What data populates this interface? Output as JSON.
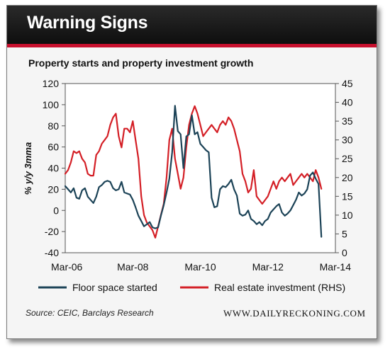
{
  "header": {
    "title": "Warning Signs",
    "subtitle": "Property starts and property investment growth"
  },
  "footer": {
    "source": "Source: CEIC, Barclays Research",
    "website": "WWW.DAILYRECKONING.COM"
  },
  "colors": {
    "floor_space": "#1c4357",
    "real_estate": "#d41f26",
    "header_band": "#1a1a1a",
    "accent": "#c8102e"
  },
  "chart_data": {
    "type": "line",
    "title": "Property starts and property investment growth",
    "ylabel_left": "% y/y 3mma",
    "ylim_left": [
      -40,
      120
    ],
    "ylim_right": [
      0,
      45
    ],
    "yticks_left": [
      "120",
      "100",
      "80",
      "60",
      "40",
      "20",
      "0",
      "-20",
      "-40"
    ],
    "yticks_right": [
      "45",
      "40",
      "35",
      "30",
      "25",
      "20",
      "15",
      "10",
      "5",
      "0"
    ],
    "x_tick_labels": [
      "Mar-06",
      "Mar-08",
      "Mar-10",
      "Mar-12",
      "Mar-14"
    ],
    "x_tick_positions": [
      0,
      24,
      48,
      72,
      96
    ],
    "grid": false,
    "legend_position": "bottom",
    "series": [
      {
        "name": "Floor space started",
        "axis": "left",
        "points": [
          [
            0,
            23
          ],
          [
            1,
            20
          ],
          [
            2,
            17
          ],
          [
            3,
            21
          ],
          [
            4,
            12
          ],
          [
            5,
            11
          ],
          [
            6,
            19
          ],
          [
            7,
            21
          ],
          [
            8,
            13
          ],
          [
            9,
            10
          ],
          [
            10,
            7
          ],
          [
            11,
            13
          ],
          [
            12,
            22
          ],
          [
            13,
            24
          ],
          [
            14,
            27
          ],
          [
            15,
            28
          ],
          [
            16,
            27
          ],
          [
            17,
            21
          ],
          [
            18,
            19
          ],
          [
            19,
            20
          ],
          [
            20,
            27
          ],
          [
            21,
            17
          ],
          [
            22,
            16
          ],
          [
            23,
            15
          ],
          [
            24,
            10
          ],
          [
            25,
            3
          ],
          [
            26,
            -5
          ],
          [
            27,
            -10
          ],
          [
            28,
            -15
          ],
          [
            29,
            -13
          ],
          [
            30,
            -11
          ],
          [
            31,
            -16
          ],
          [
            32,
            -17
          ],
          [
            33,
            -16
          ],
          [
            34,
            -5
          ],
          [
            35,
            5
          ],
          [
            36,
            17
          ],
          [
            37,
            30
          ],
          [
            38,
            55
          ],
          [
            39,
            99
          ],
          [
            40,
            75
          ],
          [
            41,
            72
          ],
          [
            42,
            40
          ],
          [
            43,
            70
          ],
          [
            44,
            72
          ],
          [
            45,
            90
          ],
          [
            46,
            72
          ],
          [
            47,
            74
          ],
          [
            48,
            63
          ],
          [
            49,
            60
          ],
          [
            50,
            57
          ],
          [
            51,
            55
          ],
          [
            52,
            12
          ],
          [
            53,
            3
          ],
          [
            54,
            4
          ],
          [
            55,
            20
          ],
          [
            56,
            23
          ],
          [
            57,
            22
          ],
          [
            58,
            25
          ],
          [
            59,
            29
          ],
          [
            60,
            20
          ],
          [
            61,
            14
          ],
          [
            62,
            -3
          ],
          [
            63,
            -5
          ],
          [
            64,
            -4
          ],
          [
            65,
            0
          ],
          [
            66,
            -8
          ],
          [
            67,
            -10
          ],
          [
            68,
            -13
          ],
          [
            69,
            -11
          ],
          [
            70,
            -14
          ],
          [
            71,
            -10
          ],
          [
            72,
            -8
          ],
          [
            73,
            -2
          ],
          [
            74,
            1
          ],
          [
            75,
            4
          ],
          [
            76,
            6
          ],
          [
            77,
            -2
          ],
          [
            78,
            -5
          ],
          [
            79,
            -3
          ],
          [
            80,
            0
          ],
          [
            81,
            5
          ],
          [
            82,
            10
          ],
          [
            83,
            17
          ],
          [
            84,
            14
          ],
          [
            85,
            16
          ],
          [
            86,
            20
          ],
          [
            87,
            33
          ],
          [
            88,
            36
          ],
          [
            89,
            30
          ],
          [
            90,
            25
          ],
          [
            91,
            -25
          ]
        ]
      },
      {
        "name": "Real estate investment (RHS)",
        "axis": "right",
        "points": [
          [
            0,
            21
          ],
          [
            1,
            22
          ],
          [
            2,
            24
          ],
          [
            3,
            27
          ],
          [
            4,
            26.5
          ],
          [
            5,
            27
          ],
          [
            6,
            25
          ],
          [
            7,
            24
          ],
          [
            8,
            21
          ],
          [
            9,
            20.5
          ],
          [
            10,
            20.5
          ],
          [
            11,
            26
          ],
          [
            12,
            27
          ],
          [
            13,
            29
          ],
          [
            14,
            30
          ],
          [
            15,
            31
          ],
          [
            16,
            34
          ],
          [
            17,
            36
          ],
          [
            18,
            37
          ],
          [
            19,
            31
          ],
          [
            20,
            28
          ],
          [
            21,
            33
          ],
          [
            22,
            33
          ],
          [
            23,
            32
          ],
          [
            24,
            35
          ],
          [
            25,
            30
          ],
          [
            26,
            25
          ],
          [
            27,
            15
          ],
          [
            28,
            10
          ],
          [
            29,
            8
          ],
          [
            30,
            7
          ],
          [
            31,
            6
          ],
          [
            32,
            4
          ],
          [
            33,
            7
          ],
          [
            34,
            10
          ],
          [
            35,
            13
          ],
          [
            36,
            20
          ],
          [
            37,
            30
          ],
          [
            38,
            33
          ],
          [
            39,
            25
          ],
          [
            40,
            21
          ],
          [
            41,
            17
          ],
          [
            42,
            20
          ],
          [
            43,
            28
          ],
          [
            44,
            34
          ],
          [
            45,
            37
          ],
          [
            46,
            39
          ],
          [
            47,
            37
          ],
          [
            48,
            34
          ],
          [
            49,
            31
          ],
          [
            50,
            32
          ],
          [
            51,
            33
          ],
          [
            52,
            34
          ],
          [
            53,
            33
          ],
          [
            54,
            32
          ],
          [
            55,
            34
          ],
          [
            56,
            35
          ],
          [
            57,
            34
          ],
          [
            58,
            36
          ],
          [
            59,
            35
          ],
          [
            60,
            33
          ],
          [
            61,
            30
          ],
          [
            62,
            27
          ],
          [
            63,
            21
          ],
          [
            64,
            19
          ],
          [
            65,
            16
          ],
          [
            66,
            17
          ],
          [
            67,
            22
          ],
          [
            68,
            15
          ],
          [
            69,
            14
          ],
          [
            70,
            13
          ],
          [
            71,
            14
          ],
          [
            72,
            15
          ],
          [
            73,
            17
          ],
          [
            74,
            19
          ],
          [
            75,
            17
          ],
          [
            76,
            19
          ],
          [
            77,
            20
          ],
          [
            78,
            19
          ],
          [
            79,
            20
          ],
          [
            80,
            21
          ],
          [
            81,
            18
          ],
          [
            82,
            19
          ],
          [
            83,
            20
          ],
          [
            84,
            21
          ],
          [
            85,
            20
          ],
          [
            86,
            21
          ],
          [
            87,
            20
          ],
          [
            88,
            19
          ],
          [
            89,
            22
          ],
          [
            90,
            20
          ],
          [
            91,
            17
          ]
        ]
      }
    ]
  }
}
